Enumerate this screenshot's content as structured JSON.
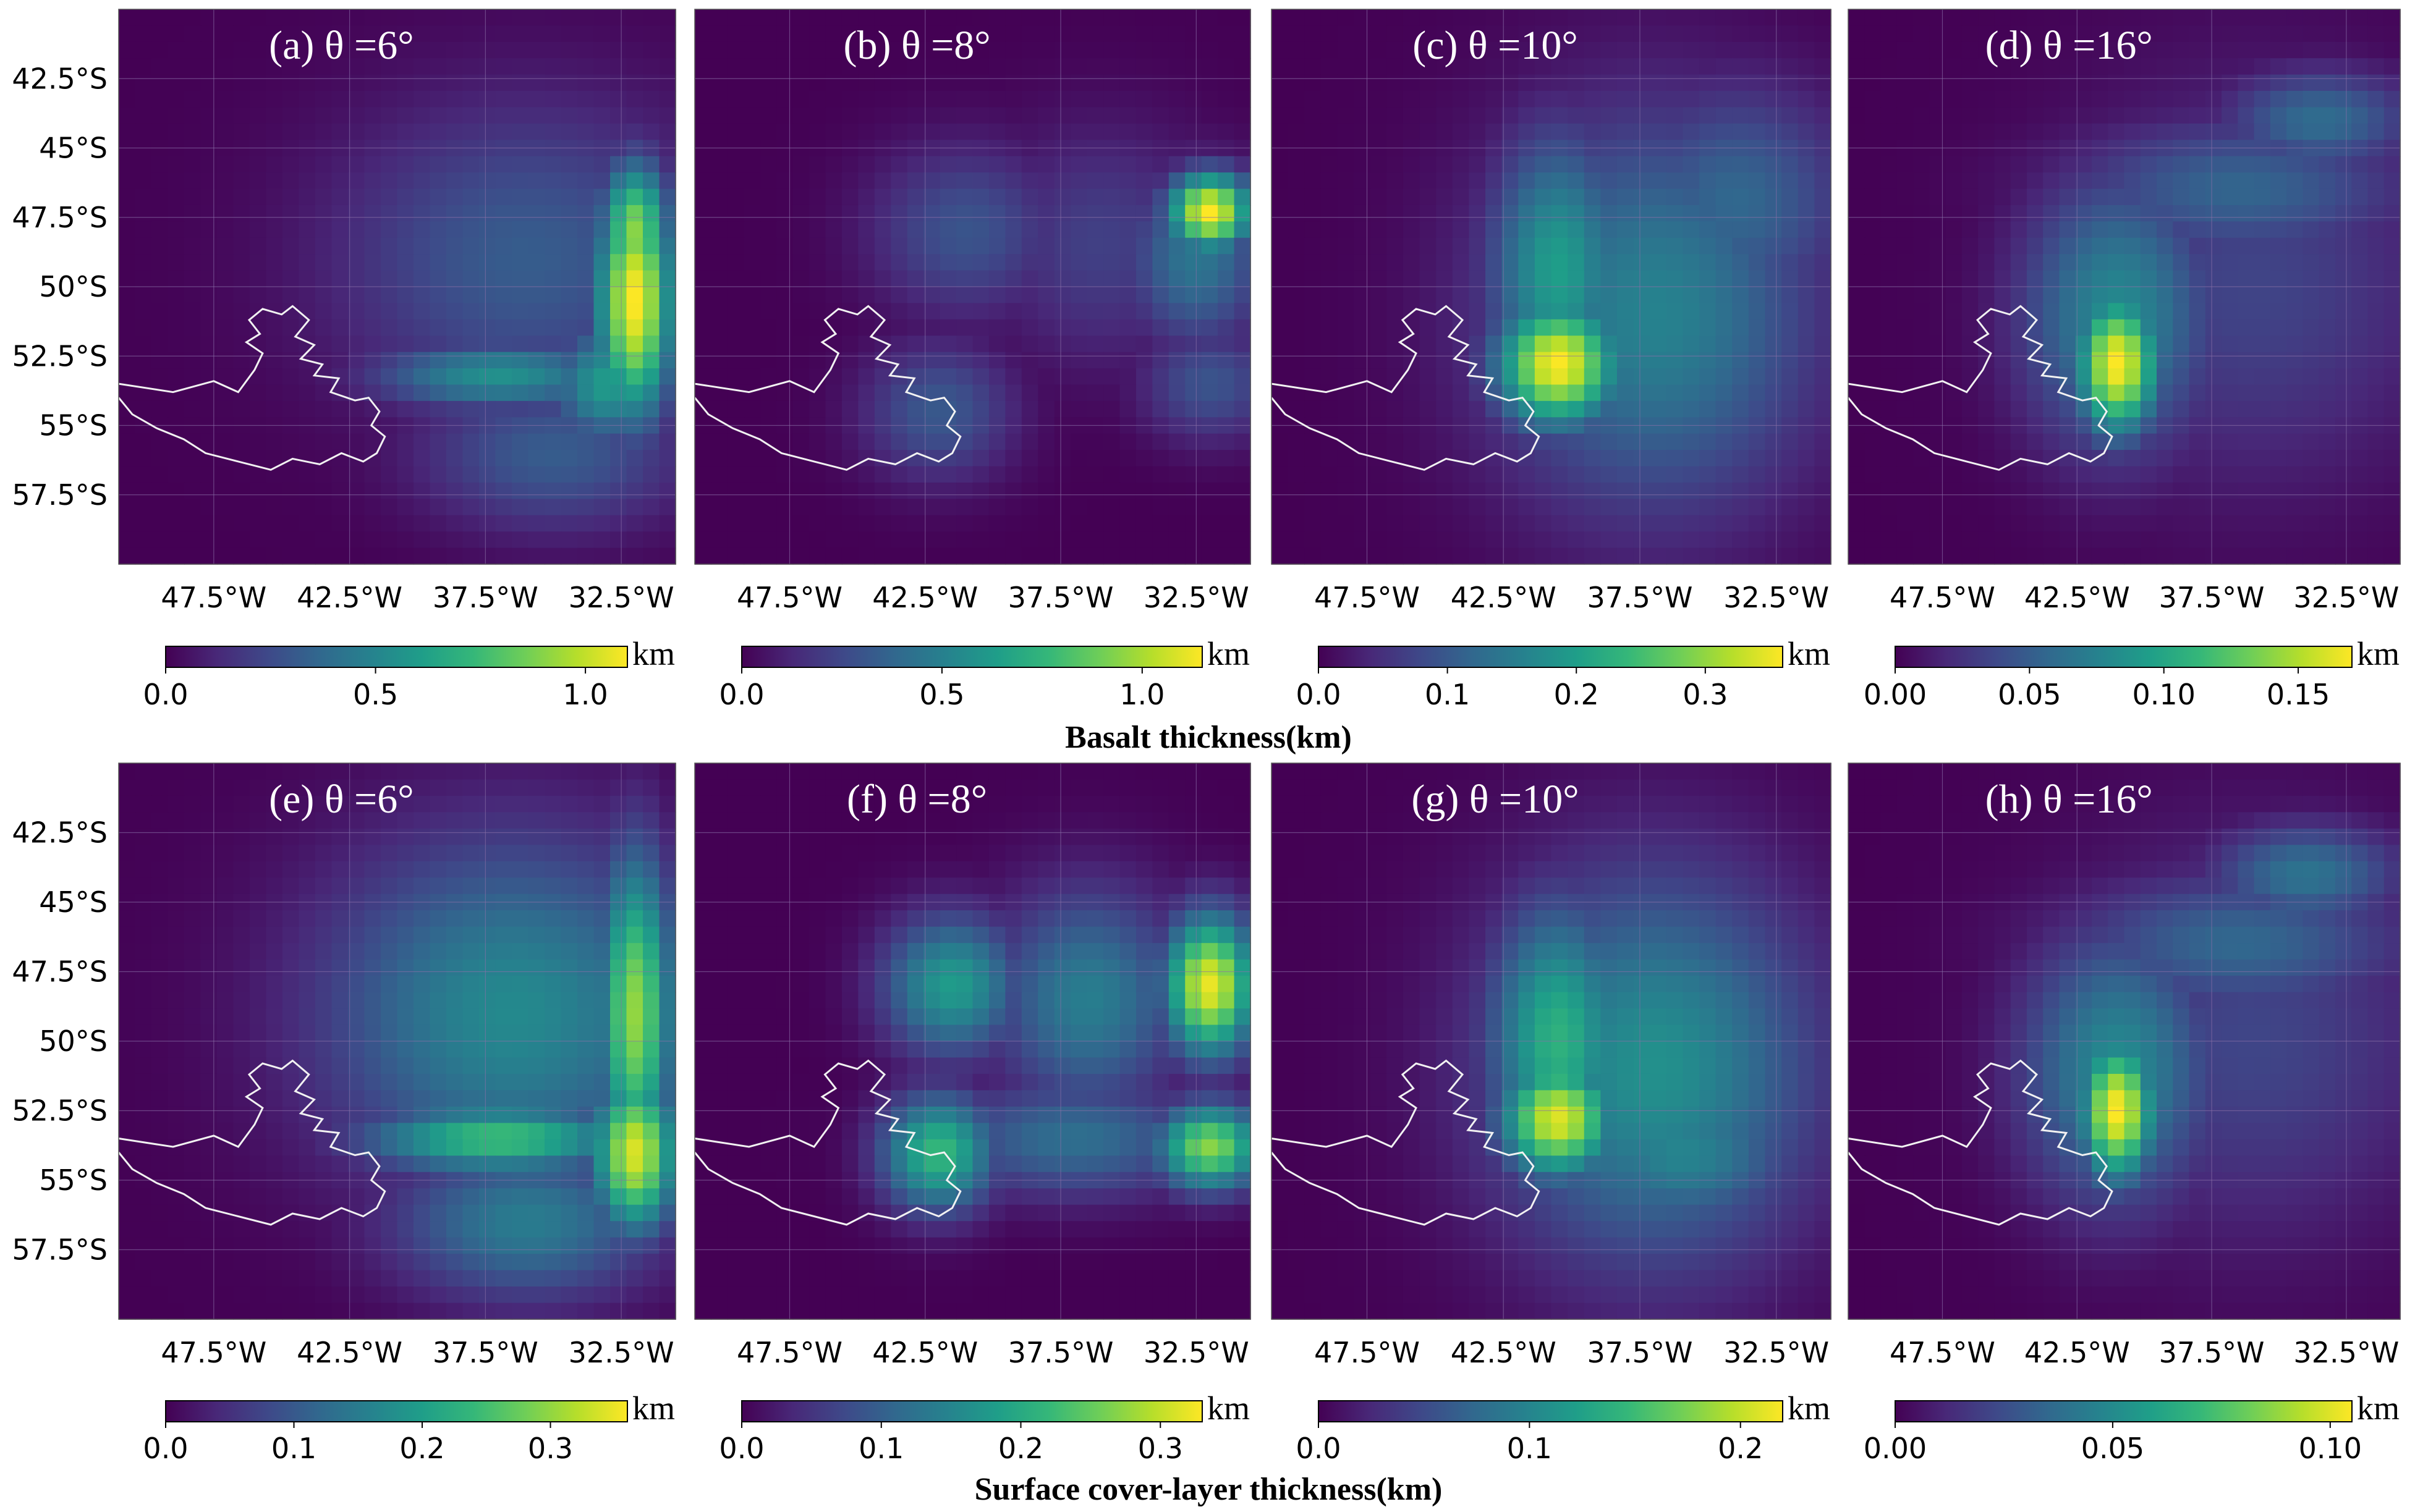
{
  "figure": {
    "row_labels": [
      "Basalt thickness(km)",
      "Surface cover-layer thickness(km)"
    ]
  },
  "colors": {
    "viridis": [
      "#440154",
      "#482878",
      "#3e4989",
      "#31688e",
      "#26828e",
      "#1f9e89",
      "#35b779",
      "#6ece58",
      "#b5de2b",
      "#fde725"
    ],
    "coastline": "#f2f2f2",
    "gridline": "#8a6fa8"
  },
  "chart_data": [
    {
      "type": "heatmap",
      "panel_label": "(a)",
      "theta": "6°",
      "title": "(a) θ =6°",
      "xticks": [
        "47.5°W",
        "42.5°W",
        "37.5°W",
        "32.5°W"
      ],
      "yticks": [
        "42.5°S",
        "45°S",
        "47.5°S",
        "50°S",
        "52.5°S",
        "55°S",
        "57.5°S"
      ],
      "xlim": [
        -51,
        -30.5
      ],
      "ylim": [
        -60,
        -40
      ],
      "colorbar": {
        "ticks": [
          "0.0",
          "0.5",
          "1.0"
        ],
        "range": [
          0,
          1.1
        ],
        "unit": "km"
      },
      "row": "Basalt thickness(km)",
      "grid": true,
      "hotspots": [
        {
          "lon": -32,
          "lat": -50.5,
          "value": 1.1,
          "sx": 1.0,
          "sy": 3.0
        },
        {
          "lon": -32,
          "lat": -48,
          "value": 0.9,
          "sx": 0.9,
          "sy": 1.8
        },
        {
          "lon": -37,
          "lat": -53.2,
          "value": 0.55,
          "sx": 3.2,
          "sy": 0.9
        },
        {
          "lon": -33,
          "lat": -53.5,
          "value": 0.6,
          "sx": 1.5,
          "sy": 1.5
        },
        {
          "lon": -36,
          "lat": -49,
          "value": 0.32,
          "sx": 5,
          "sy": 4
        },
        {
          "lon": -35,
          "lat": -56,
          "value": 0.32,
          "sx": 3.5,
          "sy": 2
        }
      ]
    },
    {
      "type": "heatmap",
      "panel_label": "(b)",
      "theta": "8°",
      "title": "(b) θ =8°",
      "xticks": [
        "47.5°W",
        "42.5°W",
        "37.5°W",
        "32.5°W"
      ],
      "yticks": [],
      "xlim": [
        -51,
        -30.5
      ],
      "ylim": [
        -60,
        -40
      ],
      "colorbar": {
        "ticks": [
          "0.0",
          "0.5",
          "1.0"
        ],
        "range": [
          0,
          1.15
        ],
        "unit": "km"
      },
      "row": "Basalt thickness(km)",
      "grid": true,
      "hotspots": [
        {
          "lon": -32,
          "lat": -47.3,
          "value": 1.15,
          "sx": 1.1,
          "sy": 1.0
        },
        {
          "lon": -32.5,
          "lat": -49,
          "value": 0.45,
          "sx": 1.8,
          "sy": 2.2
        },
        {
          "lon": -41,
          "lat": -48,
          "value": 0.3,
          "sx": 2.5,
          "sy": 2.2
        },
        {
          "lon": -36,
          "lat": -48.5,
          "value": 0.22,
          "sx": 3,
          "sy": 3
        },
        {
          "lon": -42,
          "lat": -54.5,
          "value": 0.32,
          "sx": 2,
          "sy": 1.8
        },
        {
          "lon": -32,
          "lat": -53.5,
          "value": 0.3,
          "sx": 1.8,
          "sy": 1.5
        }
      ]
    },
    {
      "type": "heatmap",
      "panel_label": "(c)",
      "theta": "10°",
      "title": "(c) θ =10°",
      "xticks": [
        "47.5°W",
        "42.5°W",
        "37.5°W",
        "32.5°W"
      ],
      "yticks": [],
      "xlim": [
        -51,
        -30.5
      ],
      "ylim": [
        -60,
        -40
      ],
      "colorbar": {
        "ticks": [
          "0.0",
          "0.1",
          "0.2",
          "0.3"
        ],
        "range": [
          0,
          0.36
        ],
        "unit": "km"
      },
      "row": "Basalt thickness(km)",
      "grid": true,
      "hotspots": [
        {
          "lon": -40.5,
          "lat": -52.8,
          "value": 0.36,
          "sx": 1.6,
          "sy": 1.6
        },
        {
          "lon": -40.5,
          "lat": -49.5,
          "value": 0.2,
          "sx": 1.8,
          "sy": 3.5
        },
        {
          "lon": -37,
          "lat": -51,
          "value": 0.16,
          "sx": 4.2,
          "sy": 5
        },
        {
          "lon": -34,
          "lat": -47,
          "value": 0.12,
          "sx": 3,
          "sy": 3
        }
      ]
    },
    {
      "type": "heatmap",
      "panel_label": "(d)",
      "theta": "16°",
      "title": "(d) θ =16°",
      "xticks": [
        "47.5°W",
        "42.5°W",
        "37.5°W",
        "32.5°W"
      ],
      "yticks": [],
      "xlim": [
        -51,
        -30.5
      ],
      "ylim": [
        -60,
        -40
      ],
      "colorbar": {
        "ticks": [
          "0.00",
          "0.05",
          "0.10",
          "0.15"
        ],
        "range": [
          0,
          0.17
        ],
        "unit": "km"
      },
      "row": "Basalt thickness(km)",
      "grid": true,
      "hotspots": [
        {
          "lon": -41,
          "lat": -52.8,
          "value": 0.17,
          "sx": 1.1,
          "sy": 1.8
        },
        {
          "lon": -41,
          "lat": -51,
          "value": 0.08,
          "sx": 2.5,
          "sy": 3.5
        },
        {
          "lon": -36.5,
          "lat": -46.5,
          "value": 0.055,
          "sx": 4.5,
          "sy": 1.8
        },
        {
          "lon": -33.5,
          "lat": -44,
          "value": 0.06,
          "sx": 2.5,
          "sy": 1.3
        },
        {
          "lon": -36,
          "lat": -50,
          "value": 0.035,
          "sx": 5,
          "sy": 5
        }
      ]
    },
    {
      "type": "heatmap",
      "panel_label": "(e)",
      "theta": "6°",
      "title": "(e) θ =6°",
      "xticks": [
        "47.5°W",
        "42.5°W",
        "37.5°W",
        "32.5°W"
      ],
      "yticks": [
        "42.5°S",
        "45°S",
        "47.5°S",
        "50°S",
        "52.5°S",
        "55°S",
        "57.5°S"
      ],
      "xlim": [
        -51,
        -30.5
      ],
      "ylim": [
        -60,
        -40
      ],
      "colorbar": {
        "ticks": [
          "0.0",
          "0.1",
          "0.2",
          "0.3"
        ],
        "range": [
          0,
          0.36
        ],
        "unit": "km"
      },
      "row": "Surface cover-layer thickness(km)",
      "grid": true,
      "hotspots": [
        {
          "lon": -32,
          "lat": -54,
          "value": 0.34,
          "sx": 1.1,
          "sy": 2
        },
        {
          "lon": -32,
          "lat": -49,
          "value": 0.3,
          "sx": 1.0,
          "sy": 4
        },
        {
          "lon": -37,
          "lat": -53.5,
          "value": 0.25,
          "sx": 3.5,
          "sy": 0.9
        },
        {
          "lon": -36.5,
          "lat": -49,
          "value": 0.17,
          "sx": 5,
          "sy": 4.5
        },
        {
          "lon": -36,
          "lat": -56.5,
          "value": 0.15,
          "sx": 3.5,
          "sy": 2
        }
      ]
    },
    {
      "type": "heatmap",
      "panel_label": "(f)",
      "theta": "8°",
      "title": "(f) θ =8°",
      "xticks": [
        "47.5°W",
        "42.5°W",
        "37.5°W",
        "32.5°W"
      ],
      "yticks": [],
      "xlim": [
        -51,
        -30.5
      ],
      "ylim": [
        -60,
        -40
      ],
      "colorbar": {
        "ticks": [
          "0.0",
          "0.1",
          "0.2",
          "0.3"
        ],
        "range": [
          0,
          0.33
        ],
        "unit": "km"
      },
      "row": "Surface cover-layer thickness(km)",
      "grid": true,
      "hotspots": [
        {
          "lon": -32,
          "lat": -48,
          "value": 0.32,
          "sx": 1.2,
          "sy": 1.8
        },
        {
          "lon": -32,
          "lat": -53.8,
          "value": 0.27,
          "sx": 1.4,
          "sy": 1.1
        },
        {
          "lon": -41.5,
          "lat": -48,
          "value": 0.18,
          "sx": 1.8,
          "sy": 1.8
        },
        {
          "lon": -42,
          "lat": -54,
          "value": 0.22,
          "sx": 1.5,
          "sy": 1.5
        },
        {
          "lon": -36.5,
          "lat": -48.5,
          "value": 0.14,
          "sx": 2.5,
          "sy": 2.8
        },
        {
          "lon": -37,
          "lat": -53.5,
          "value": 0.12,
          "sx": 3.5,
          "sy": 1.5
        }
      ]
    },
    {
      "type": "heatmap",
      "panel_label": "(g)",
      "theta": "10°",
      "title": "(g) θ =10°",
      "xticks": [
        "47.5°W",
        "42.5°W",
        "37.5°W",
        "32.5°W"
      ],
      "yticks": [],
      "xlim": [
        -51,
        -30.5
      ],
      "ylim": [
        -60,
        -40
      ],
      "colorbar": {
        "ticks": [
          "0.0",
          "0.1",
          "0.2"
        ],
        "range": [
          0,
          0.22
        ],
        "unit": "km"
      },
      "row": "Surface cover-layer thickness(km)",
      "grid": true,
      "hotspots": [
        {
          "lon": -40.5,
          "lat": -52.8,
          "value": 0.21,
          "sx": 1.5,
          "sy": 1.5
        },
        {
          "lon": -40.5,
          "lat": -50,
          "value": 0.14,
          "sx": 1.8,
          "sy": 3.5
        },
        {
          "lon": -37,
          "lat": -51,
          "value": 0.11,
          "sx": 4.2,
          "sy": 5
        },
        {
          "lon": -36,
          "lat": -54,
          "value": 0.1,
          "sx": 3,
          "sy": 2
        }
      ]
    },
    {
      "type": "heatmap",
      "panel_label": "(h)",
      "theta": "16°",
      "title": "(h) θ =16°",
      "xticks": [
        "47.5°W",
        "42.5°W",
        "37.5°W",
        "32.5°W"
      ],
      "yticks": [],
      "xlim": [
        -51,
        -30.5
      ],
      "ylim": [
        -60,
        -40
      ],
      "colorbar": {
        "ticks": [
          "0.00",
          "0.05",
          "0.10"
        ],
        "range": [
          0,
          0.105
        ],
        "unit": "km"
      },
      "row": "Surface cover-layer thickness(km)",
      "grid": true,
      "hotspots": [
        {
          "lon": -41,
          "lat": -52.5,
          "value": 0.105,
          "sx": 1.0,
          "sy": 1.8
        },
        {
          "lon": -41,
          "lat": -51,
          "value": 0.05,
          "sx": 2.5,
          "sy": 3.5
        },
        {
          "lon": -36.5,
          "lat": -46.5,
          "value": 0.035,
          "sx": 4.5,
          "sy": 1.8
        },
        {
          "lon": -34,
          "lat": -44,
          "value": 0.04,
          "sx": 2.5,
          "sy": 1.3
        },
        {
          "lon": -36,
          "lat": -50,
          "value": 0.022,
          "sx": 5,
          "sy": 5
        }
      ]
    }
  ]
}
